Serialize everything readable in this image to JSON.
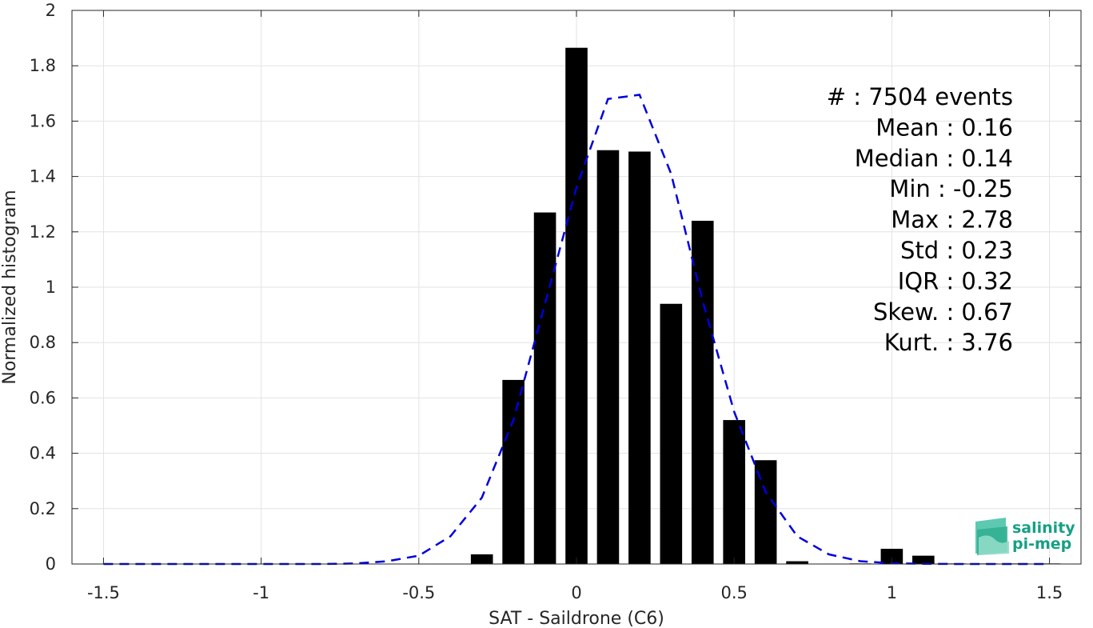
{
  "chart_data": {
    "type": "bar",
    "xlabel": "SAT - Saildrone (C6)",
    "ylabel": "Normalized histogram",
    "xlim": [
      -1.6,
      1.6
    ],
    "ylim": [
      0,
      2
    ],
    "grid": true,
    "x_ticks": [
      -1.5,
      -1,
      -0.5,
      0,
      0.5,
      1,
      1.5
    ],
    "x_tick_labels": [
      "-1.5",
      "-1",
      "-0.5",
      "0",
      "0.5",
      "1",
      "1.5"
    ],
    "y_ticks": [
      0,
      0.2,
      0.4,
      0.6,
      0.8,
      1,
      1.2,
      1.4,
      1.6,
      1.8,
      2
    ],
    "y_tick_labels": [
      "0",
      "0.2",
      "0.4",
      "0.6",
      "0.8",
      "1",
      "1.2",
      "1.4",
      "1.6",
      "1.8",
      "2"
    ],
    "bar_width": 0.07,
    "bar_color": "#000000",
    "bars": {
      "x": [
        -0.3,
        -0.2,
        -0.1,
        0.0,
        0.1,
        0.2,
        0.3,
        0.4,
        0.5,
        0.6,
        0.7,
        0.9,
        1.0,
        1.1,
        1.2,
        1.3,
        1.4,
        1.5
      ],
      "values": [
        0.035,
        0.665,
        1.27,
        1.865,
        1.495,
        1.49,
        0.94,
        1.24,
        0.52,
        0.375,
        0.01,
        0.002,
        0.055,
        0.03,
        0.002,
        0.002,
        0.002,
        0.002
      ]
    },
    "fit_curve": {
      "style": "dashed",
      "color": "#0000dd",
      "x": [
        -1.5,
        -1.4,
        -1.3,
        -1.2,
        -1.1,
        -1.0,
        -0.9,
        -0.8,
        -0.7,
        -0.6,
        -0.5,
        -0.4,
        -0.3,
        -0.2,
        -0.1,
        0.0,
        0.1,
        0.2,
        0.3,
        0.4,
        0.5,
        0.6,
        0.7,
        0.8,
        0.9,
        1.0,
        1.1,
        1.2,
        1.3,
        1.4,
        1.5
      ],
      "y": [
        0,
        0,
        0,
        0,
        0,
        0,
        0,
        0,
        0.002,
        0.01,
        0.03,
        0.1,
        0.24,
        0.52,
        0.94,
        1.36,
        1.68,
        1.695,
        1.41,
        0.95,
        0.55,
        0.26,
        0.1,
        0.035,
        0.01,
        0.003,
        0.001,
        0,
        0,
        0,
        0
      ]
    },
    "stats": [
      {
        "label": "#  : 7504 events"
      },
      {
        "label": "Mean : 0.16"
      },
      {
        "label": "Median : 0.14"
      },
      {
        "label": "Min : -0.25"
      },
      {
        "label": "Max : 2.78"
      },
      {
        "label": "Std : 0.23"
      },
      {
        "label": "IQR : 0.32"
      },
      {
        "label": "Skew. : 0.67"
      },
      {
        "label": "Kurt. : 3.76"
      }
    ]
  },
  "logo": {
    "line1": "salinity",
    "line2": "pi-mep",
    "color": "#16a085"
  }
}
